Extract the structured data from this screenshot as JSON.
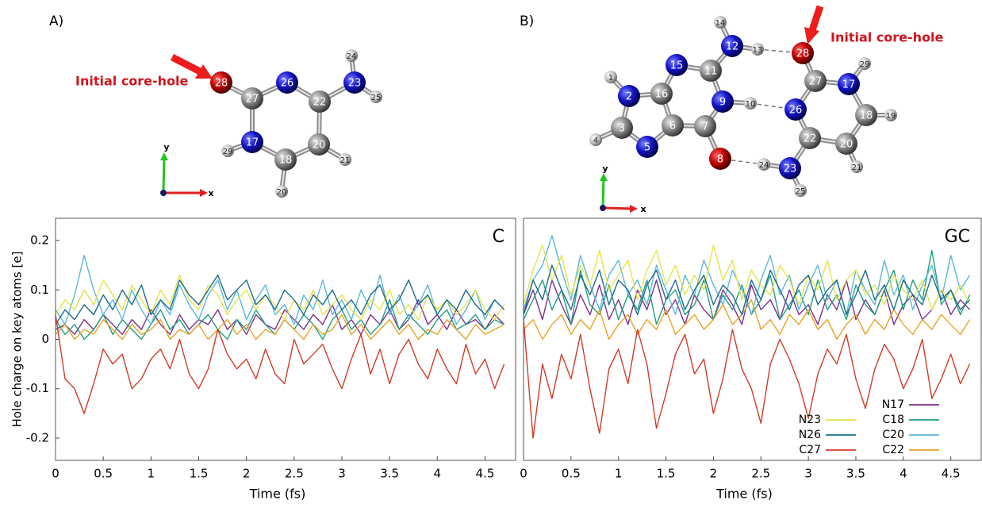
{
  "panels": [
    {
      "label": "A)",
      "annotation": "Initial core-hole",
      "atoms": [
        "28",
        "26",
        "23",
        "24",
        "25",
        "27",
        "22",
        "17",
        "20",
        "18",
        "29",
        "21",
        "20"
      ],
      "axis_labels": [
        "y",
        "x"
      ]
    },
    {
      "label": "B)",
      "annotation": "Initial core-hole",
      "atoms": [
        "1",
        "2",
        "16",
        "15",
        "11",
        "12",
        "14",
        "13",
        "28",
        "27",
        "17",
        "29",
        "18",
        "19",
        "20",
        "21",
        "22",
        "26",
        "23",
        "25",
        "24",
        "8",
        "7",
        "9",
        "10",
        "6",
        "5",
        "3",
        "4"
      ],
      "axis_labels": [
        "y",
        "x"
      ]
    }
  ],
  "chart_data": [
    {
      "type": "line",
      "title": "C",
      "xlabel": "Time (fs)",
      "ylabel": "Hole charge on key atoms [e]",
      "x": [
        0,
        0.1,
        0.2,
        0.3,
        0.4,
        0.5,
        0.6,
        0.7,
        0.8,
        0.9,
        1,
        1.1,
        1.2,
        1.3,
        1.4,
        1.5,
        1.6,
        1.7,
        1.8,
        1.9,
        2,
        2.1,
        2.2,
        2.3,
        2.4,
        2.5,
        2.6,
        2.7,
        2.8,
        2.9,
        3,
        3.1,
        3.2,
        3.3,
        3.4,
        3.5,
        3.6,
        3.7,
        3.8,
        3.9,
        4,
        4.1,
        4.2,
        4.3,
        4.4,
        4.5,
        4.6,
        4.7
      ],
      "xlim": [
        0,
        4.82
      ],
      "xticks": [
        0,
        0.5,
        1,
        1.5,
        2,
        2.5,
        3,
        3.5,
        4,
        4.5
      ],
      "ylim": [
        -0.245,
        0.245
      ],
      "yticks": [
        0.2,
        0.1,
        0,
        -0.1,
        -0.2
      ],
      "series": [
        {
          "color": "#7e2f8e",
          "values": [
            0.02,
            0.03,
            0.01,
            0.04,
            0.02,
            0.05,
            0.03,
            0.01,
            0.04,
            0.02,
            0.06,
            0.03,
            0.01,
            0.05,
            0.02,
            0.04,
            0.03,
            0.06,
            0.02,
            0.04,
            0.01,
            0.05,
            0.03,
            0.02,
            0.06,
            0.04,
            0.02,
            0.05,
            0.03,
            0.07,
            0.02,
            0.04,
            0.01,
            0.05,
            0.03,
            0.06,
            0.02,
            0.04,
            0.08,
            0.03,
            0.05,
            0.02,
            0.06,
            0.03,
            0.04,
            0.02,
            0.05,
            0.03
          ]
        },
        {
          "color": "#1f9e80",
          "values": [
            0.04,
            0.01,
            0.03,
            0.0,
            0.02,
            0.05,
            0.01,
            0.04,
            0.02,
            0.0,
            0.03,
            0.06,
            0.02,
            0.04,
            0.01,
            0.03,
            0.05,
            0.02,
            0.0,
            0.04,
            0.02,
            0.06,
            0.03,
            0.01,
            0.04,
            0.02,
            0.05,
            0.03,
            0.0,
            0.04,
            0.06,
            0.02,
            0.04,
            0.01,
            0.03,
            0.08,
            0.02,
            0.05,
            0.03,
            0.01,
            0.04,
            0.06,
            0.02,
            0.03,
            0.05,
            0.02,
            0.04,
            0.03
          ]
        },
        {
          "color": "#5ab8dc",
          "values": [
            0.06,
            0.03,
            0.09,
            0.17,
            0.1,
            0.05,
            0.08,
            0.04,
            0.1,
            0.06,
            0.03,
            0.08,
            0.05,
            0.11,
            0.07,
            0.04,
            0.09,
            0.12,
            0.06,
            0.1,
            0.04,
            0.08,
            0.11,
            0.05,
            0.07,
            0.03,
            0.09,
            0.06,
            0.12,
            0.05,
            0.08,
            0.04,
            0.1,
            0.06,
            0.13,
            0.05,
            0.09,
            0.04,
            0.07,
            0.11,
            0.05,
            0.08,
            0.03,
            0.06,
            0.1,
            0.04,
            0.08,
            0.06
          ]
        },
        {
          "color": "#e9a224",
          "values": [
            0.01,
            0.03,
            0.0,
            0.02,
            0.01,
            0.04,
            0.02,
            0.0,
            0.03,
            0.01,
            0.02,
            0.04,
            0.0,
            0.02,
            0.01,
            0.03,
            0.0,
            0.02,
            0.04,
            0.01,
            0.03,
            0.0,
            0.02,
            0.01,
            0.04,
            0.02,
            0.0,
            0.03,
            0.01,
            0.02,
            0.05,
            0.01,
            0.03,
            0.0,
            0.02,
            0.04,
            0.01,
            0.03,
            0.0,
            0.02,
            0.01,
            0.04,
            0.02,
            0.0,
            0.03,
            0.01,
            0.02,
            0.03
          ]
        },
        {
          "color": "#e8e24c",
          "values": [
            0.05,
            0.08,
            0.06,
            0.1,
            0.07,
            0.12,
            0.09,
            0.06,
            0.11,
            0.08,
            0.05,
            0.1,
            0.07,
            0.13,
            0.08,
            0.06,
            0.11,
            0.09,
            0.05,
            0.08,
            0.1,
            0.06,
            0.09,
            0.07,
            0.04,
            0.08,
            0.06,
            0.1,
            0.05,
            0.07,
            0.09,
            0.06,
            0.04,
            0.08,
            0.06,
            0.1,
            0.05,
            0.07,
            0.04,
            0.09,
            0.06,
            0.08,
            0.05,
            0.07,
            0.1,
            0.06,
            0.04,
            0.07
          ]
        },
        {
          "color": "#1d6b8b",
          "values": [
            0.03,
            0.06,
            0.04,
            0.07,
            0.05,
            0.09,
            0.06,
            0.1,
            0.07,
            0.11,
            0.05,
            0.08,
            0.06,
            0.12,
            0.09,
            0.07,
            0.1,
            0.13,
            0.08,
            0.1,
            0.12,
            0.07,
            0.09,
            0.06,
            0.1,
            0.08,
            0.05,
            0.09,
            0.07,
            0.1,
            0.06,
            0.08,
            0.05,
            0.09,
            0.11,
            0.06,
            0.08,
            0.12,
            0.07,
            0.09,
            0.05,
            0.08,
            0.06,
            0.1,
            0.07,
            0.05,
            0.08,
            0.06
          ]
        },
        {
          "color": "#d23b27",
          "values": [
            0.05,
            -0.08,
            -0.1,
            -0.15,
            -0.09,
            -0.02,
            -0.05,
            -0.03,
            -0.1,
            -0.08,
            -0.04,
            -0.02,
            -0.06,
            0.0,
            -0.07,
            -0.1,
            -0.06,
            0.02,
            -0.03,
            -0.06,
            -0.04,
            -0.08,
            -0.02,
            -0.07,
            -0.09,
            0.0,
            -0.05,
            -0.03,
            -0.01,
            -0.06,
            -0.1,
            -0.04,
            0.01,
            -0.07,
            -0.02,
            -0.09,
            -0.03,
            0.0,
            -0.05,
            -0.08,
            -0.02,
            -0.06,
            -0.09,
            -0.01,
            -0.07,
            -0.04,
            -0.1,
            -0.05
          ]
        }
      ]
    },
    {
      "type": "line",
      "title": "GC",
      "xlabel": "Time (fs)",
      "x": [
        0,
        0.1,
        0.2,
        0.3,
        0.4,
        0.5,
        0.6,
        0.7,
        0.8,
        0.9,
        1,
        1.1,
        1.2,
        1.3,
        1.4,
        1.5,
        1.6,
        1.7,
        1.8,
        1.9,
        2,
        2.1,
        2.2,
        2.3,
        2.4,
        2.5,
        2.6,
        2.7,
        2.8,
        2.9,
        3,
        3.1,
        3.2,
        3.3,
        3.4,
        3.5,
        3.6,
        3.7,
        3.8,
        3.9,
        4,
        4.1,
        4.2,
        4.3,
        4.4,
        4.5,
        4.6,
        4.7
      ],
      "xlim": [
        0,
        4.82
      ],
      "xticks": [
        0,
        0.5,
        1,
        1.5,
        2,
        2.5,
        3,
        3.5,
        4,
        4.5
      ],
      "ylim": [
        -0.245,
        0.245
      ],
      "series": [
        {
          "name": "N17",
          "color": "#7e2f8e",
          "values": [
            0.05,
            0.1,
            0.04,
            0.12,
            0.07,
            0.03,
            0.09,
            0.05,
            0.11,
            0.04,
            0.08,
            0.03,
            0.1,
            0.06,
            0.12,
            0.05,
            0.08,
            0.03,
            0.09,
            0.06,
            0.04,
            0.1,
            0.07,
            0.03,
            0.11,
            0.06,
            0.08,
            0.04,
            0.1,
            0.05,
            0.07,
            0.03,
            0.09,
            0.06,
            0.12,
            0.04,
            0.08,
            0.05,
            0.1,
            0.03,
            0.07,
            0.09,
            0.04,
            0.06,
            0.1,
            0.05,
            0.08,
            0.06
          ]
        },
        {
          "name": "C18",
          "color": "#1f9e80",
          "values": [
            0.04,
            0.08,
            0.12,
            0.06,
            0.1,
            0.03,
            0.14,
            0.07,
            0.05,
            0.11,
            0.04,
            0.09,
            0.06,
            0.12,
            0.03,
            0.08,
            0.1,
            0.05,
            0.07,
            0.12,
            0.04,
            0.09,
            0.06,
            0.11,
            0.05,
            0.08,
            0.13,
            0.04,
            0.07,
            0.1,
            0.05,
            0.12,
            0.06,
            0.09,
            0.04,
            0.11,
            0.07,
            0.05,
            0.1,
            0.14,
            0.06,
            0.12,
            0.08,
            0.18,
            0.07,
            0.1,
            0.05,
            0.09
          ]
        },
        {
          "name": "C20",
          "color": "#5ab8dc",
          "values": [
            0.06,
            0.12,
            0.15,
            0.21,
            0.14,
            0.08,
            0.17,
            0.11,
            0.06,
            0.13,
            0.16,
            0.09,
            0.12,
            0.07,
            0.15,
            0.1,
            0.05,
            0.13,
            0.09,
            0.16,
            0.11,
            0.07,
            0.14,
            0.1,
            0.05,
            0.12,
            0.17,
            0.09,
            0.13,
            0.06,
            0.11,
            0.15,
            0.08,
            0.12,
            0.05,
            0.14,
            0.1,
            0.07,
            0.16,
            0.09,
            0.13,
            0.06,
            0.11,
            0.15,
            0.08,
            0.17,
            0.1,
            0.13
          ]
        },
        {
          "name": "C22",
          "color": "#e9a224",
          "values": [
            0.02,
            0.04,
            0.0,
            0.03,
            0.05,
            0.01,
            0.04,
            0.02,
            0.06,
            0.0,
            0.03,
            0.05,
            0.01,
            0.04,
            0.02,
            0.06,
            0.01,
            0.03,
            0.05,
            0.02,
            0.04,
            0.07,
            0.03,
            0.05,
            0.08,
            0.02,
            0.04,
            0.01,
            0.05,
            0.03,
            0.06,
            0.02,
            0.04,
            0.0,
            0.03,
            0.05,
            0.01,
            0.04,
            0.02,
            0.06,
            0.03,
            0.01,
            0.04,
            0.02,
            0.05,
            0.03,
            0.01,
            0.04
          ]
        },
        {
          "name": "N23",
          "color": "#e8e24c",
          "values": [
            0.07,
            0.14,
            0.19,
            0.12,
            0.17,
            0.09,
            0.15,
            0.11,
            0.18,
            0.1,
            0.13,
            0.16,
            0.08,
            0.14,
            0.18,
            0.11,
            0.15,
            0.09,
            0.13,
            0.1,
            0.19,
            0.12,
            0.16,
            0.08,
            0.14,
            0.11,
            0.09,
            0.15,
            0.12,
            0.07,
            0.13,
            0.1,
            0.16,
            0.08,
            0.12,
            0.14,
            0.09,
            0.11,
            0.07,
            0.13,
            0.1,
            0.08,
            0.12,
            0.06,
            0.1,
            0.08,
            0.11,
            0.07
          ]
        },
        {
          "name": "N26",
          "color": "#1d6b8b",
          "values": [
            0.05,
            0.12,
            0.08,
            0.15,
            0.1,
            0.06,
            0.13,
            0.09,
            0.14,
            0.07,
            0.12,
            0.1,
            0.05,
            0.11,
            0.14,
            0.08,
            0.12,
            0.06,
            0.1,
            0.13,
            0.07,
            0.11,
            0.09,
            0.05,
            0.12,
            0.08,
            0.14,
            0.1,
            0.06,
            0.11,
            0.13,
            0.07,
            0.1,
            0.12,
            0.05,
            0.09,
            0.14,
            0.08,
            0.11,
            0.06,
            0.12,
            0.09,
            0.07,
            0.13,
            0.08,
            0.1,
            0.06,
            0.08
          ]
        },
        {
          "name": "C27",
          "color": "#d23b27",
          "values": [
            0.04,
            -0.2,
            -0.05,
            -0.12,
            -0.03,
            -0.08,
            0.01,
            -0.1,
            -0.19,
            -0.06,
            -0.02,
            -0.09,
            0.02,
            -0.05,
            -0.18,
            -0.11,
            -0.03,
            0.01,
            -0.07,
            -0.04,
            -0.15,
            -0.08,
            0.02,
            -0.06,
            -0.1,
            -0.17,
            -0.05,
            0.0,
            -0.04,
            -0.09,
            -0.16,
            -0.07,
            -0.02,
            -0.05,
            0.01,
            -0.08,
            -0.14,
            -0.06,
            -0.01,
            -0.04,
            -0.1,
            -0.06,
            0.0,
            -0.12,
            -0.08,
            -0.03,
            -0.09,
            -0.05
          ]
        }
      ]
    }
  ]
}
